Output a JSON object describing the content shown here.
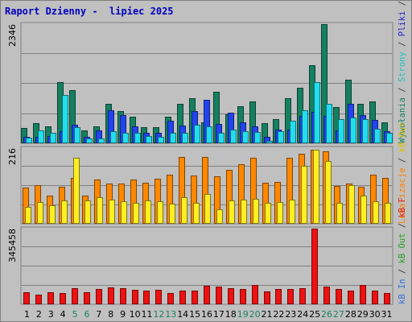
{
  "title": "Raport Dzienny -  lipiec 2025",
  "chart_data": [
    {
      "type": "bar",
      "panel": "top",
      "ytick": "2346",
      "ylim": [
        0,
        2346
      ],
      "legend_parts": [
        {
          "text": "Wywołania",
          "color": "#1a8060"
        },
        {
          "text": " / ",
          "color": "#404040"
        },
        {
          "text": "Strony",
          "color": "#20c0c0"
        },
        {
          "text": " / ",
          "color": "#404040"
        },
        {
          "text": "Pliki",
          "color": "#2020d0"
        },
        {
          "text": " / ",
          "color": "#404040"
        },
        {
          "text": "Wywołania",
          "color": "#1a8060"
        }
      ],
      "series": [
        {
          "name": "Wywołania",
          "color": "#158060",
          "values": [
            300,
            400,
            330,
            1200,
            1050,
            250,
            330,
            770,
            630,
            520,
            320,
            320,
            520,
            770,
            880,
            420,
            1020,
            570,
            730,
            830,
            400,
            470,
            880,
            1100,
            1530,
            2346,
            720,
            1250,
            770,
            820,
            420
          ]
        },
        {
          "name": "Pliki",
          "color": "#2244ee",
          "values": [
            130,
            130,
            150,
            240,
            370,
            130,
            260,
            650,
            550,
            330,
            200,
            200,
            450,
            350,
            630,
            850,
            380,
            600,
            410,
            330,
            130,
            270,
            270,
            540,
            620,
            540,
            260,
            780,
            560,
            460,
            230
          ]
        },
        {
          "name": "Strony",
          "color": "#22ddee",
          "values": [
            110,
            250,
            200,
            950,
            320,
            90,
            100,
            240,
            210,
            200,
            150,
            130,
            200,
            200,
            370,
            330,
            210,
            270,
            240,
            220,
            50,
            230,
            450,
            650,
            1200,
            780,
            470,
            510,
            470,
            280,
            200
          ]
        }
      ]
    },
    {
      "type": "bar",
      "panel": "middle",
      "ytick": "216",
      "ylim": [
        0,
        216
      ],
      "legend_parts": [
        {
          "text": "Lokalizacje",
          "color": "#ff8000"
        },
        {
          "text": " / ",
          "color": "#404040"
        },
        {
          "text": "kB Out",
          "color": "#e0c000"
        }
      ],
      "series": [
        {
          "name": "Lokalizacje",
          "color": "#ff8800",
          "values": [
            104,
            110,
            80,
            106,
            130,
            80,
            126,
            114,
            115,
            126,
            117,
            129,
            140,
            191,
            139,
            190,
            135,
            155,
            170,
            189,
            117,
            119,
            189,
            199,
            211,
            206,
            109,
            114,
            105,
            140,
            130
          ]
        },
        {
          "name": "kB Out",
          "color": "#ffee22",
          "values": [
            49,
            61,
            53,
            67,
            189,
            66,
            75,
            70,
            65,
            59,
            67,
            65,
            57,
            75,
            59,
            85,
            42,
            66,
            70,
            72,
            60,
            62,
            70,
            165,
            212,
            180,
            60,
            110,
            80,
            64,
            59
          ]
        }
      ]
    },
    {
      "type": "bar",
      "panel": "bottom",
      "ytick": "345458",
      "ylim": [
        0,
        345458
      ],
      "legend_parts": [
        {
          "text": "kB In",
          "color": "#3070e0"
        },
        {
          "text": " / ",
          "color": "#404040"
        },
        {
          "text": "kB Out",
          "color": "#20a020"
        },
        {
          "text": " / ",
          "color": "#404040"
        },
        {
          "text": "kB F",
          "color": "#e02020"
        }
      ],
      "series": [
        {
          "name": "kB F",
          "color": "#ee1111",
          "values": [
            55000,
            43000,
            55000,
            52000,
            72000,
            55000,
            70000,
            78000,
            75000,
            65000,
            63000,
            65000,
            52000,
            63000,
            63000,
            85000,
            80000,
            75000,
            70000,
            90000,
            60000,
            70000,
            70000,
            73000,
            345458,
            82000,
            70000,
            63000,
            90000,
            62000,
            50000
          ]
        }
      ]
    }
  ],
  "x_ticks": [
    {
      "label": "1",
      "color": "#000000"
    },
    {
      "label": "2",
      "color": "#000000"
    },
    {
      "label": "3",
      "color": "#000000"
    },
    {
      "label": "4",
      "color": "#000000"
    },
    {
      "label": "5",
      "color": "#1a8060"
    },
    {
      "label": "6",
      "color": "#1a8060"
    },
    {
      "label": "7",
      "color": "#000000"
    },
    {
      "label": "8",
      "color": "#000000"
    },
    {
      "label": "9",
      "color": "#000000"
    },
    {
      "label": "10",
      "color": "#000000"
    },
    {
      "label": "11",
      "color": "#000000"
    },
    {
      "label": "12",
      "color": "#1a8060"
    },
    {
      "label": "13",
      "color": "#1a8060"
    },
    {
      "label": "14",
      "color": "#000000"
    },
    {
      "label": "15",
      "color": "#000000"
    },
    {
      "label": "16",
      "color": "#000000"
    },
    {
      "label": "17",
      "color": "#000000"
    },
    {
      "label": "18",
      "color": "#000000"
    },
    {
      "label": "19",
      "color": "#1a8060"
    },
    {
      "label": "20",
      "color": "#1a8060"
    },
    {
      "label": "21",
      "color": "#000000"
    },
    {
      "label": "22",
      "color": "#000000"
    },
    {
      "label": "23",
      "color": "#000000"
    },
    {
      "label": "24",
      "color": "#000000"
    },
    {
      "label": "25",
      "color": "#000000"
    },
    {
      "label": "26",
      "color": "#1a8060"
    },
    {
      "label": "27",
      "color": "#1a8060"
    },
    {
      "label": "28",
      "color": "#000000"
    },
    {
      "label": "29",
      "color": "#000000"
    },
    {
      "label": "30",
      "color": "#000000"
    },
    {
      "label": "31",
      "color": "#000000"
    }
  ]
}
